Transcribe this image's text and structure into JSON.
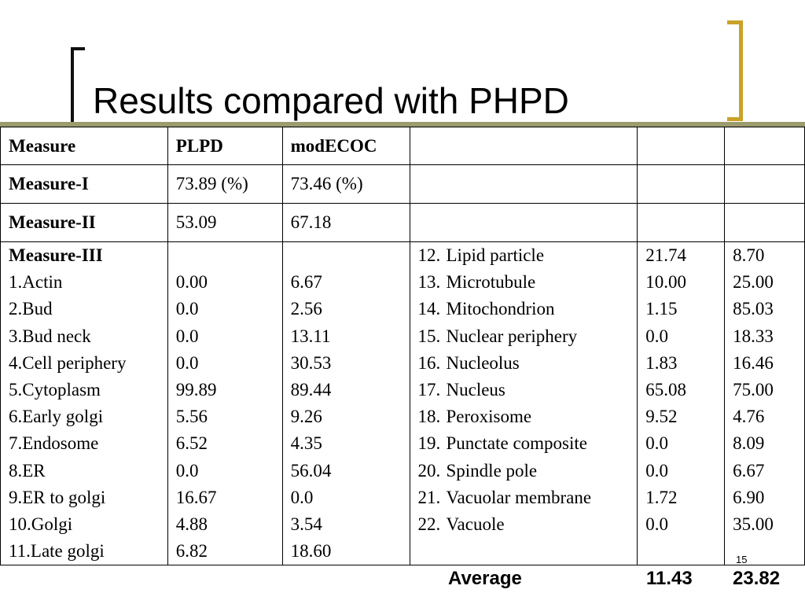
{
  "title": "Results compared with PHPD",
  "page_number": "15",
  "header": {
    "c1": "Measure",
    "c2": "PLPD",
    "c3": "modECOC"
  },
  "measure1": {
    "label": "Measure-I",
    "plpd": "73.89 (%)",
    "modecoc": "73.46 (%)"
  },
  "measure2": {
    "label": "Measure-II",
    "plpd": "53.09",
    "modecoc": "67.18"
  },
  "measure3": {
    "label": "Measure-III",
    "left": [
      {
        "name": "1.Actin",
        "plpd": "0.00",
        "modecoc": "6.67"
      },
      {
        "name": "2.Bud",
        "plpd": "0.0",
        "modecoc": "2.56"
      },
      {
        "name": "3.Bud neck",
        "plpd": "0.0",
        "modecoc": "13.11"
      },
      {
        "name": "4.Cell periphery",
        "plpd": "0.0",
        "modecoc": "30.53"
      },
      {
        "name": "5.Cytoplasm",
        "plpd": "99.89",
        "modecoc": "89.44"
      },
      {
        "name": "6.Early golgi",
        "plpd": "5.56",
        "modecoc": "9.26"
      },
      {
        "name": "7.Endosome",
        "plpd": "6.52",
        "modecoc": "4.35"
      },
      {
        "name": "8.ER",
        "plpd": "0.0",
        "modecoc": "56.04"
      },
      {
        "name": "9.ER to golgi",
        "plpd": "16.67",
        "modecoc": "0.0"
      },
      {
        "name": "10.Golgi",
        "plpd": "4.88",
        "modecoc": "3.54"
      },
      {
        "name": "11.Late golgi",
        "plpd": "6.82",
        "modecoc": "18.60"
      }
    ],
    "right": [
      {
        "num": "12.",
        "name": "Lipid particle",
        "plpd": "21.74",
        "modecoc": "8.70"
      },
      {
        "num": "13.",
        "name": "Microtubule",
        "plpd": "10.00",
        "modecoc": "25.00"
      },
      {
        "num": "14.",
        "name": "Mitochondrion",
        "plpd": "1.15",
        "modecoc": "85.03"
      },
      {
        "num": "15.",
        "name": "Nuclear periphery",
        "plpd": "0.0",
        "modecoc": "18.33"
      },
      {
        "num": "16.",
        "name": "Nucleolus",
        "plpd": "1.83",
        "modecoc": "16.46"
      },
      {
        "num": "17.",
        "name": "Nucleus",
        "plpd": "65.08",
        "modecoc": "75.00"
      },
      {
        "num": "18.",
        "name": "Peroxisome",
        "plpd": "9.52",
        "modecoc": "4.76"
      },
      {
        "num": "19.",
        "name": "Punctate composite",
        "plpd": "0.0",
        "modecoc": "8.09"
      },
      {
        "num": "20.",
        "name": "Spindle pole",
        "plpd": "0.0",
        "modecoc": "6.67"
      },
      {
        "num": "21.",
        "name": "Vacuolar membrane",
        "plpd": "1.72",
        "modecoc": "6.90"
      },
      {
        "num": "22.",
        "name": "Vacuole",
        "plpd": "0.0",
        "modecoc": "35.00"
      }
    ],
    "average": {
      "label": "Average",
      "plpd": "11.43",
      "modecoc": "23.82"
    }
  },
  "colors": {
    "title_rule": "#9b9b6e",
    "accent_bracket": "#c9a227"
  }
}
